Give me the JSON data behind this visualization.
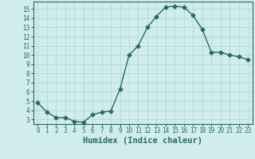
{
  "x": [
    0,
    1,
    2,
    3,
    4,
    5,
    6,
    7,
    8,
    9,
    10,
    11,
    12,
    13,
    14,
    15,
    16,
    17,
    18,
    19,
    20,
    21,
    22,
    23
  ],
  "y": [
    4.8,
    3.8,
    3.2,
    3.2,
    2.8,
    2.7,
    3.5,
    3.8,
    3.9,
    6.3,
    10.0,
    11.0,
    13.0,
    14.2,
    15.2,
    15.3,
    15.2,
    14.3,
    12.8,
    10.3,
    10.3,
    10.0,
    9.8,
    9.5
  ],
  "line_color": "#2a6b5e",
  "bg_color": "#d0ecec",
  "grid_color": "#b0d8d8",
  "xlabel": "Humidex (Indice chaleur)",
  "ylim": [
    2.5,
    15.8
  ],
  "xlim": [
    -0.5,
    23.5
  ],
  "yticks": [
    3,
    4,
    5,
    6,
    7,
    8,
    9,
    10,
    11,
    12,
    13,
    14,
    15
  ],
  "xticks": [
    0,
    1,
    2,
    3,
    4,
    5,
    6,
    7,
    8,
    9,
    10,
    11,
    12,
    13,
    14,
    15,
    16,
    17,
    18,
    19,
    20,
    21,
    22,
    23
  ],
  "tick_fontsize": 5.5,
  "xlabel_fontsize": 7.5,
  "marker_size": 2.5,
  "line_width": 1.0
}
